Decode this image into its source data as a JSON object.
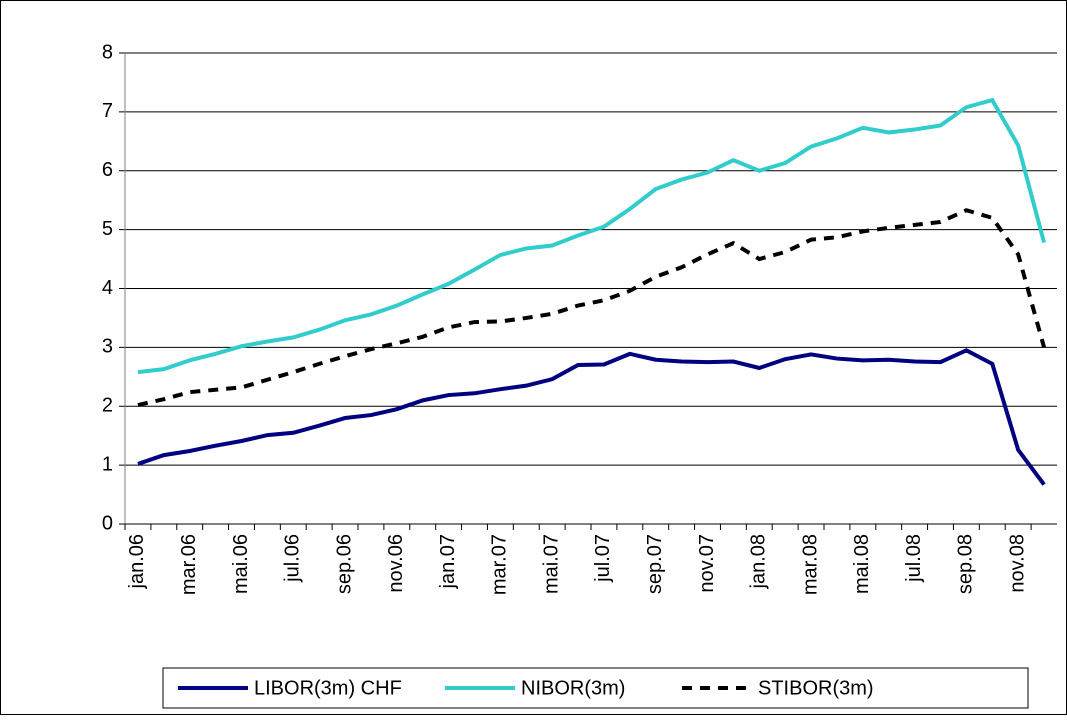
{
  "chart_data": {
    "type": "line",
    "categories": [
      "jan.06",
      null,
      "mar.06",
      null,
      "mai.06",
      null,
      "jul.06",
      null,
      "sep.06",
      null,
      "nov.06",
      null,
      "jan.07",
      null,
      "mar.07",
      null,
      "mai.07",
      null,
      "jul.07",
      null,
      "sep.07",
      null,
      "nov.07",
      null,
      "jan.08",
      null,
      "mar.08",
      null,
      "mai.08",
      null,
      "jul.08",
      null,
      "sep.08",
      null,
      "nov.08",
      null
    ],
    "series": [
      {
        "name": "LIBOR(3m) CHF",
        "color": "#000080",
        "dash": "solid",
        "values": [
          1.02,
          1.17,
          1.24,
          1.33,
          1.41,
          1.51,
          1.55,
          1.67,
          1.8,
          1.85,
          1.95,
          2.1,
          2.19,
          2.22,
          2.29,
          2.35,
          2.46,
          2.7,
          2.71,
          2.89,
          2.79,
          2.76,
          2.75,
          2.76,
          2.65,
          2.8,
          2.88,
          2.81,
          2.78,
          2.79,
          2.76,
          2.75,
          2.95,
          2.72,
          1.26,
          0.67
        ]
      },
      {
        "name": "NIBOR(3m)",
        "color": "#33CCCC",
        "dash": "solid",
        "values": [
          2.58,
          2.63,
          2.78,
          2.89,
          3.02,
          3.1,
          3.17,
          3.3,
          3.46,
          3.56,
          3.71,
          3.9,
          4.08,
          4.32,
          4.57,
          4.68,
          4.73,
          4.9,
          5.05,
          5.35,
          5.69,
          5.85,
          5.97,
          6.18,
          6.0,
          6.13,
          6.41,
          6.55,
          6.73,
          6.65,
          6.7,
          6.77,
          7.08,
          7.2,
          6.43,
          4.78
        ]
      },
      {
        "name": "STIBOR(3m)",
        "color": "#000000",
        "dash": "dashed",
        "values": [
          2.02,
          2.12,
          2.24,
          2.28,
          2.32,
          2.45,
          2.58,
          2.72,
          2.85,
          2.97,
          3.07,
          3.18,
          3.34,
          3.43,
          3.44,
          3.5,
          3.57,
          3.71,
          3.8,
          3.96,
          4.2,
          4.36,
          4.58,
          4.77,
          4.5,
          4.62,
          4.83,
          4.87,
          4.97,
          5.03,
          5.08,
          5.13,
          5.33,
          5.2,
          4.58,
          3.0
        ]
      }
    ],
    "ylim": [
      0,
      8
    ],
    "yticks": [
      0,
      1,
      2,
      3,
      4,
      5,
      6,
      7,
      8
    ],
    "grid": true,
    "legend": "bottom"
  }
}
